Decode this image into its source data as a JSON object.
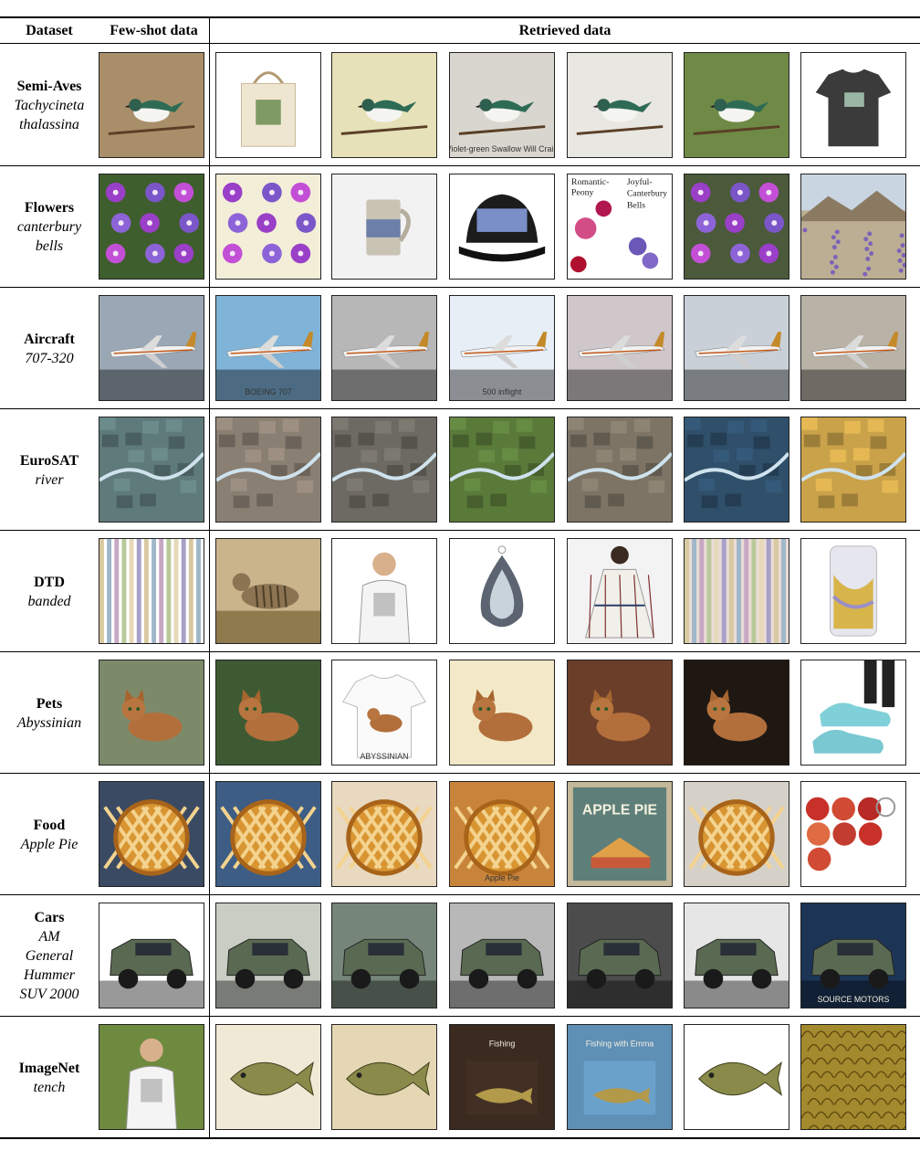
{
  "table": {
    "headers": {
      "dataset": "Dataset",
      "fewshot": "Few-shot data",
      "retrieved": "Retrieved data"
    },
    "rows": [
      {
        "dataset": "Semi-Aves",
        "cls": [
          "Tachycineta",
          "thalassina"
        ],
        "fewshot": {
          "kind": "bird",
          "bg": "#a98e6a"
        },
        "retrieved": [
          {
            "kind": "tote",
            "bg": "#ffffff"
          },
          {
            "kind": "bird",
            "bg": "#e6e1b8"
          },
          {
            "kind": "bird",
            "bg": "#d9d6cf",
            "caption": "Violet-green Swallow      Will Crain"
          },
          {
            "kind": "bird",
            "bg": "#e9e7e2"
          },
          {
            "kind": "bird",
            "bg": "#6f8a46"
          },
          {
            "kind": "tshirt",
            "bg": "#ffffff"
          }
        ]
      },
      {
        "dataset": "Flowers",
        "cls": [
          "canterbury",
          "bells"
        ],
        "fewshot": {
          "kind": "flower",
          "bg": "#3f5e2d"
        },
        "retrieved": [
          {
            "kind": "flower",
            "bg": "#f3eed8"
          },
          {
            "kind": "mug",
            "bg": "#f2f2f2"
          },
          {
            "kind": "cap",
            "bg": "#ffffff"
          },
          {
            "kind": "flowertext",
            "bg": "#ffffff",
            "texts": [
              "Romantic-",
              "Peony",
              "Joyful-",
              "Canterbury",
              "Bells"
            ]
          },
          {
            "kind": "flower",
            "bg": "#4b5a3a"
          },
          {
            "kind": "landscape",
            "bg": "#bcae93"
          }
        ]
      },
      {
        "dataset": "Aircraft",
        "cls": [
          "707-320"
        ],
        "fewshot": {
          "kind": "plane",
          "bg": "#9aa7b5"
        },
        "retrieved": [
          {
            "kind": "plane",
            "bg": "#7fb3d8",
            "caption": "BOEING 707"
          },
          {
            "kind": "plane",
            "bg": "#b7b7b7"
          },
          {
            "kind": "plane",
            "bg": "#e7eef5",
            "caption": "500 inflight"
          },
          {
            "kind": "plane",
            "bg": "#cfc7ca"
          },
          {
            "kind": "plane",
            "bg": "#c9d0d8"
          },
          {
            "kind": "plane",
            "bg": "#b9b2a6"
          }
        ]
      },
      {
        "dataset": "EuroSAT",
        "cls": [
          "river"
        ],
        "fewshot": {
          "kind": "aerial",
          "bg": "#5f7a7a"
        },
        "retrieved": [
          {
            "kind": "aerial",
            "bg": "#8a7f73"
          },
          {
            "kind": "aerial",
            "bg": "#6d6a63"
          },
          {
            "kind": "aerial",
            "bg": "#5a7a3a"
          },
          {
            "kind": "aerial",
            "bg": "#7d7466"
          },
          {
            "kind": "aerial",
            "bg": "#2f4f6a"
          },
          {
            "kind": "aerial",
            "bg": "#c9a24a"
          }
        ]
      },
      {
        "dataset": "DTD",
        "cls": [
          "banded"
        ],
        "fewshot": {
          "kind": "stripes",
          "bg": "#ffffff"
        },
        "retrieved": [
          {
            "kind": "animal",
            "bg": "#c9b48c"
          },
          {
            "kind": "person",
            "bg": "#ffffff"
          },
          {
            "kind": "agate",
            "bg": "#ffffff"
          },
          {
            "kind": "dress",
            "bg": "#f3f3f3"
          },
          {
            "kind": "stripes",
            "bg": "#e9dcd6"
          },
          {
            "kind": "phone",
            "bg": "#ffffff"
          }
        ]
      },
      {
        "dataset": "Pets",
        "cls": [
          "Abyssinian"
        ],
        "fewshot": {
          "kind": "cat",
          "bg": "#7c8a6a"
        },
        "retrieved": [
          {
            "kind": "cat",
            "bg": "#3d5a33"
          },
          {
            "kind": "shirtcat",
            "bg": "#ffffff",
            "caption": "ABYSSINIAN"
          },
          {
            "kind": "cat",
            "bg": "#f3e9c8"
          },
          {
            "kind": "cat",
            "bg": "#6b3e2a"
          },
          {
            "kind": "cat",
            "bg": "#1f1812"
          },
          {
            "kind": "shoes",
            "bg": "#ffffff"
          }
        ]
      },
      {
        "dataset": "Food",
        "cls": [
          "Apple Pie"
        ],
        "fewshot": {
          "kind": "pie",
          "bg": "#3b4a63"
        },
        "retrieved": [
          {
            "kind": "pie",
            "bg": "#3d5d85"
          },
          {
            "kind": "pie",
            "bg": "#e8d9c0"
          },
          {
            "kind": "pie",
            "bg": "#c8843a",
            "caption": "Apple Pie"
          },
          {
            "kind": "poster",
            "bg": "#c4b89a",
            "caption": "APPLE PIE"
          },
          {
            "kind": "pie",
            "bg": "#d6d1c8"
          },
          {
            "kind": "apples",
            "bg": "#ffffff"
          }
        ]
      },
      {
        "dataset": "Cars",
        "cls": [
          "AM",
          "General",
          "Hummer",
          "SUV 2000"
        ],
        "fewshot": {
          "kind": "car",
          "bg": "#ffffff"
        },
        "retrieved": [
          {
            "kind": "car",
            "bg": "#c9cdc4"
          },
          {
            "kind": "car",
            "bg": "#76857a"
          },
          {
            "kind": "car",
            "bg": "#b8b8b8"
          },
          {
            "kind": "car",
            "bg": "#4c4c4c"
          },
          {
            "kind": "car",
            "bg": "#e6e6e6"
          },
          {
            "kind": "car",
            "bg": "#1c3556",
            "caption": "SOURCE MOTORS"
          }
        ]
      },
      {
        "dataset": "ImageNet",
        "cls": [
          "tench"
        ],
        "fewshot": {
          "kind": "person",
          "bg": "#6e8a3e"
        },
        "retrieved": [
          {
            "kind": "fish",
            "bg": "#efe9d6"
          },
          {
            "kind": "fish",
            "bg": "#e6d7b4"
          },
          {
            "kind": "book",
            "bg": "#3a2a20",
            "caption": "Fishing"
          },
          {
            "kind": "book",
            "bg": "#5e8fb5",
            "caption": "Fishing with Emma"
          },
          {
            "kind": "fish",
            "bg": "#ffffff"
          },
          {
            "kind": "scales",
            "bg": "#a38a2e"
          }
        ]
      }
    ]
  }
}
